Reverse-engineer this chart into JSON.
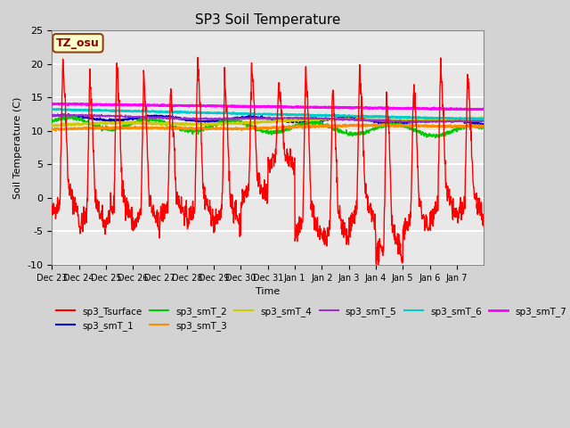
{
  "title": "SP3 Soil Temperature",
  "xlabel": "Time",
  "ylabel": "Soil Temperature (C)",
  "ylim": [
    -10,
    25
  ],
  "annotation_text": "TZ_osu",
  "annotation_bgcolor": "#ffffcc",
  "annotation_edgecolor": "#8B4513",
  "annotation_textcolor": "#8B0000",
  "background_color": "#d3d3d3",
  "plot_bgcolor": "#e8e8e8",
  "grid_color": "#ffffff",
  "series": {
    "sp3_Tsurface": {
      "color": "#ff0000",
      "linewidth": 1.0
    },
    "sp3_smT_1": {
      "color": "#0000cd",
      "linewidth": 1.2
    },
    "sp3_smT_2": {
      "color": "#00cc00",
      "linewidth": 1.2
    },
    "sp3_smT_3": {
      "color": "#ff8c00",
      "linewidth": 1.5
    },
    "sp3_smT_4": {
      "color": "#cccc00",
      "linewidth": 1.5
    },
    "sp3_smT_5": {
      "color": "#9932cc",
      "linewidth": 1.2
    },
    "sp3_smT_6": {
      "color": "#00cccc",
      "linewidth": 1.5
    },
    "sp3_smT_7": {
      "color": "#ff00ff",
      "linewidth": 1.8
    }
  },
  "xtick_labels": [
    "Dec 23",
    "Dec 24",
    "Dec 25",
    "Dec 26",
    "Dec 27",
    "Dec 28",
    "Dec 29",
    "Dec 30",
    "Dec 31",
    "Jan 1",
    "Jan 2",
    "Jan 3",
    "Jan 4",
    "Jan 5",
    "Jan 6",
    "Jan 7"
  ],
  "ytick_vals": [
    -10,
    -5,
    0,
    5,
    10,
    15,
    20,
    25
  ]
}
